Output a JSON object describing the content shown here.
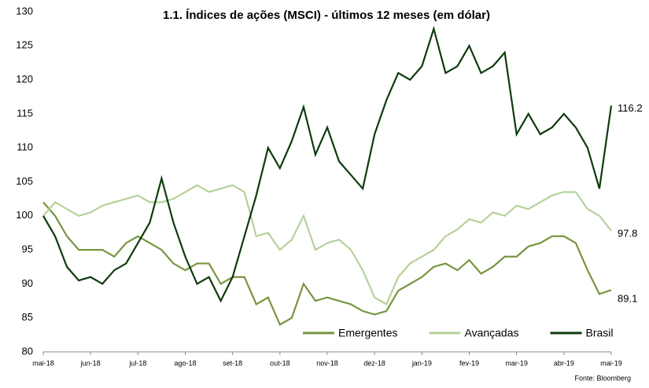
{
  "chart_data": {
    "type": "line",
    "title": "1.1. Índices de ações (MSCI) - últimos 12 meses (em dólar)",
    "source": "Fonte: Bloomberg",
    "categories": [
      "mai-18",
      null,
      null,
      null,
      "jun-18",
      null,
      null,
      null,
      "jul-18",
      null,
      null,
      null,
      "ago-18",
      null,
      null,
      null,
      "set-18",
      null,
      null,
      null,
      "out-18",
      null,
      null,
      null,
      "nov-18",
      null,
      null,
      null,
      "dez-18",
      null,
      null,
      null,
      "jan-19",
      null,
      null,
      null,
      "fev-19",
      null,
      null,
      null,
      "mar-19",
      null,
      null,
      null,
      "abr-19",
      null,
      null,
      null,
      "mai-19"
    ],
    "series": [
      {
        "name": "Emergentes",
        "color": "#77953f",
        "values": [
          102,
          100,
          97,
          95,
          95,
          95,
          94,
          96,
          97,
          96,
          95,
          93,
          92,
          93,
          93,
          90,
          91,
          91,
          87,
          88,
          84,
          85,
          90,
          87.5,
          88,
          87.5,
          87,
          86,
          85.5,
          86,
          89,
          90,
          91,
          92.5,
          93,
          92,
          93.5,
          91.5,
          92.5,
          94,
          94,
          95.5,
          96,
          97,
          97,
          96,
          92,
          88.5,
          89.1
        ]
      },
      {
        "name": "Avançadas",
        "color": "#b5d29a",
        "values": [
          100,
          102,
          101,
          100,
          100.5,
          101.5,
          102,
          102.5,
          103,
          102,
          102,
          102.5,
          103.5,
          104.5,
          103.5,
          104,
          104.5,
          103.5,
          97,
          97.5,
          95,
          96.5,
          100,
          95,
          96,
          96.5,
          95,
          92,
          88,
          87,
          91,
          93,
          94,
          95,
          97,
          98,
          99.5,
          99,
          100.5,
          100,
          101.5,
          101,
          102,
          103,
          103.5,
          103.5,
          101,
          100,
          97.8
        ]
      },
      {
        "name": "Brasil",
        "color": "#0e3b0e",
        "values": [
          100,
          97,
          92.5,
          90.5,
          91,
          90,
          92,
          93,
          96,
          99,
          105.5,
          99,
          94,
          90,
          91,
          87.5,
          91,
          97,
          103,
          110,
          107,
          111,
          116,
          109,
          113,
          108,
          106,
          104,
          112,
          117,
          121,
          120,
          122,
          127.5,
          121,
          122,
          125,
          121,
          122,
          124,
          112,
          115,
          112,
          113,
          115,
          113,
          110,
          104,
          116.2
        ]
      }
    ],
    "ylim": [
      80,
      130
    ],
    "yticks": [
      80,
      85,
      90,
      95,
      100,
      105,
      110,
      115,
      120,
      125,
      130
    ],
    "grid": false,
    "legend": "lower right"
  }
}
